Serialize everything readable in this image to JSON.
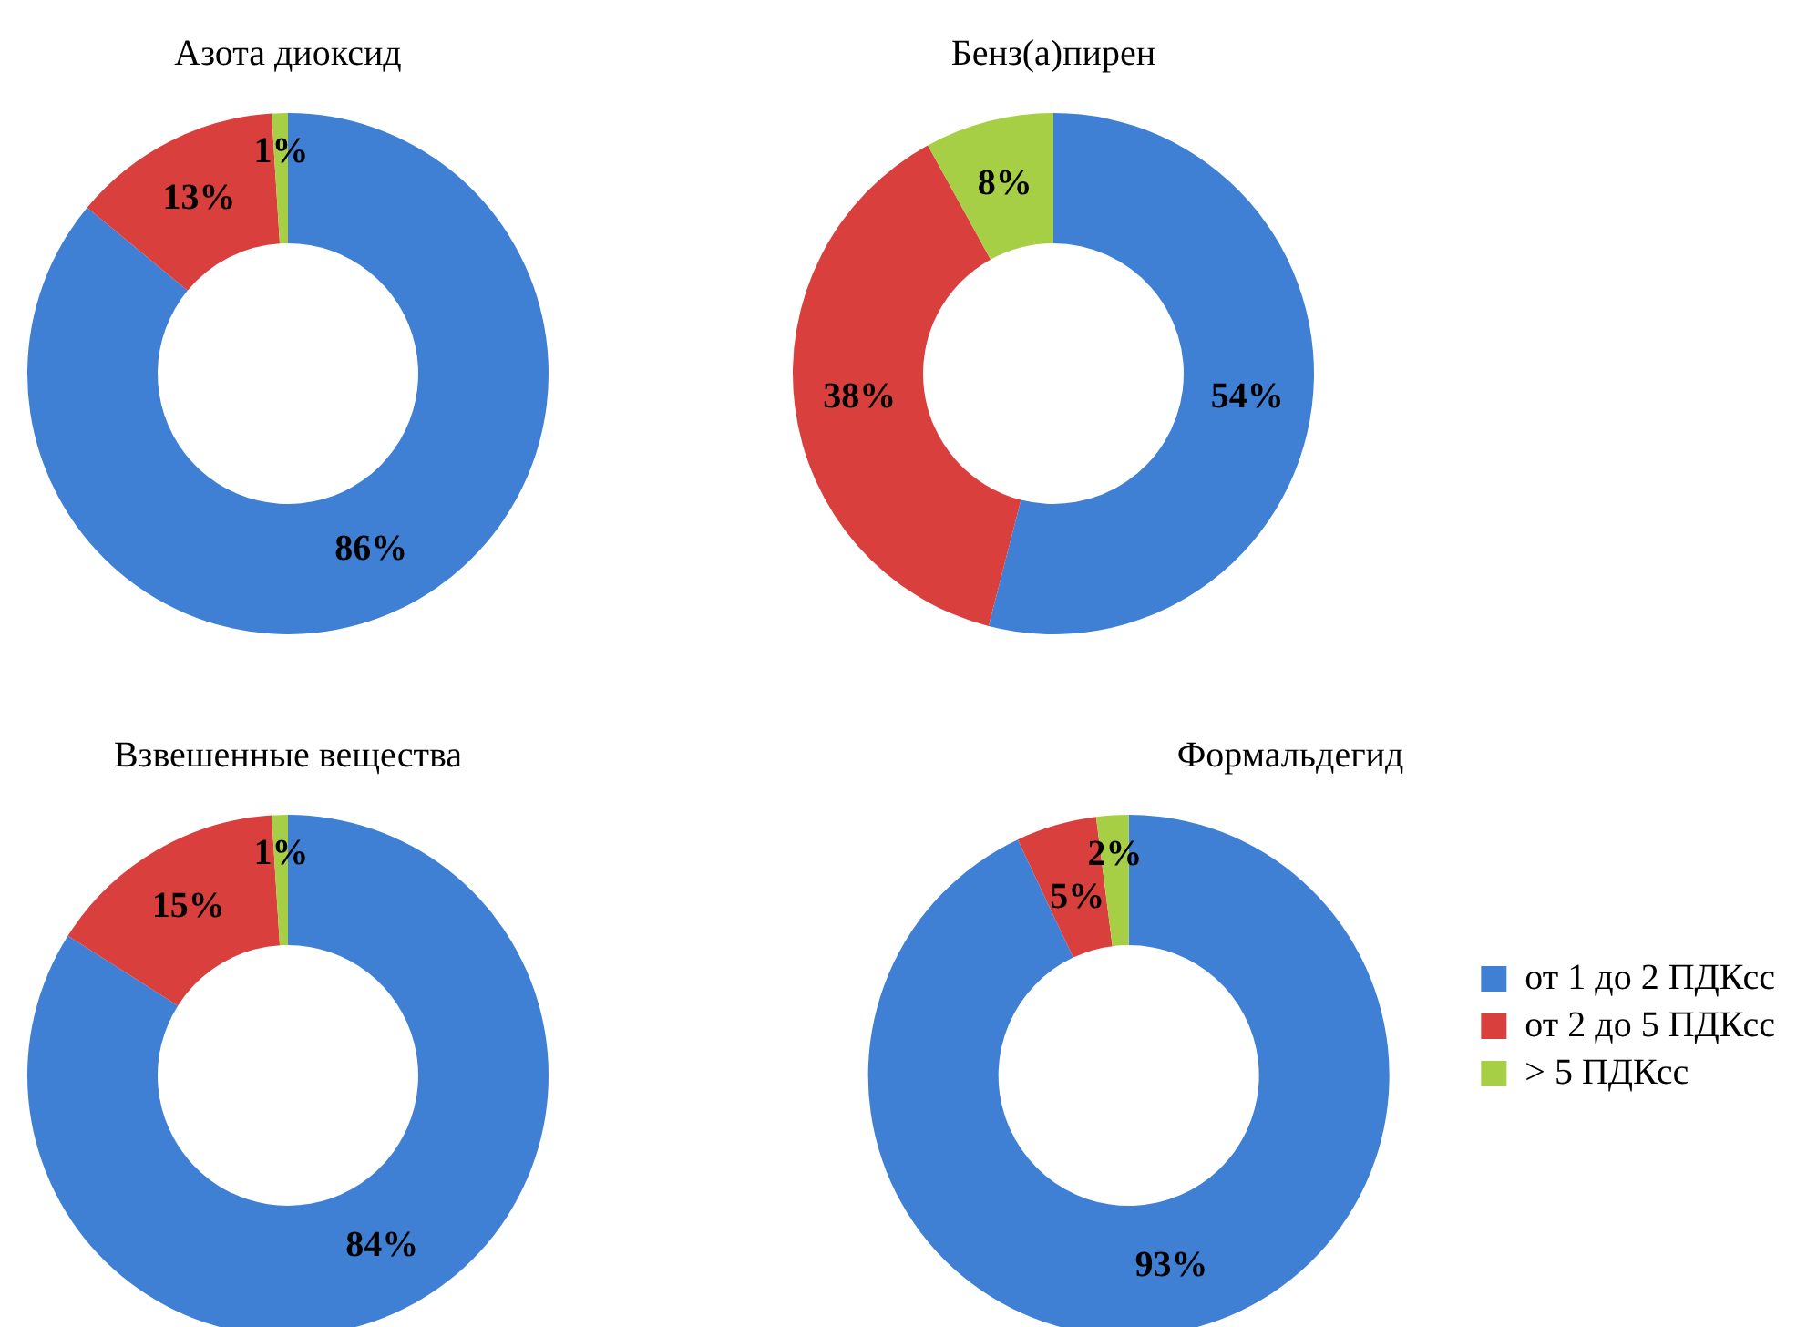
{
  "chart_data": [
    {
      "type": "donut",
      "title": "Азота диоксид",
      "categories": [
        null,
        null,
        null
      ],
      "values": [
        86,
        13,
        1
      ],
      "value_labels": [
        "86%",
        "13%",
        "1%"
      ],
      "colors": [
        "#3f7fd4",
        "#d9403d",
        "#a6cf45"
      ],
      "legend": false
    },
    {
      "type": "donut",
      "title": "Бенз(а)пирен",
      "categories": [
        null,
        null,
        null
      ],
      "values": [
        54,
        38,
        8
      ],
      "value_labels": [
        "54%",
        "38%",
        "8%"
      ],
      "colors": [
        "#3f7fd4",
        "#d9403d",
        "#a6cf45"
      ],
      "legend": false
    },
    {
      "type": "donut",
      "title": "Взвешенные вещества",
      "categories": [
        null,
        null,
        null
      ],
      "values": [
        84,
        15,
        1
      ],
      "value_labels": [
        "84%",
        "15%",
        "1%"
      ],
      "colors": [
        "#3f7fd4",
        "#d9403d",
        "#a6cf45"
      ],
      "legend": false
    },
    {
      "type": "donut",
      "title": "Формальдегид",
      "categories": [
        "от 1 до 2 ПДКсс",
        "от 2 до 5 ПДКсс",
        "> 5 ПДКсс"
      ],
      "values": [
        93,
        5,
        2
      ],
      "value_labels": [
        "93%",
        "5%",
        "2%"
      ],
      "colors": [
        "#3f7fd4",
        "#d9403d",
        "#a6cf45"
      ],
      "legend": "right"
    }
  ]
}
